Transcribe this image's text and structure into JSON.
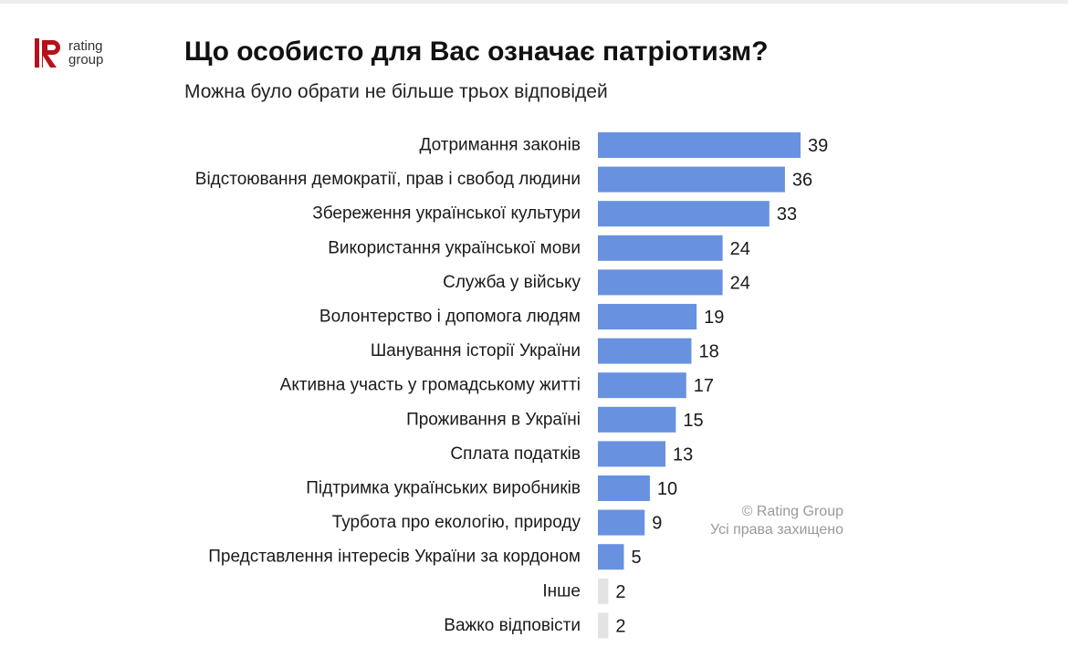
{
  "header": {
    "title": "Що особисто для Вас означає патріотизм?",
    "subtitle": "Можна було обрати не більше трьох відповідей"
  },
  "logo": {
    "line1": "rating",
    "line2": "group",
    "brand_color": "#b5121b"
  },
  "watermark": {
    "line1": "© Rating Group",
    "line2": "Усі права захищено"
  },
  "colors": {
    "bar": "#6891e0",
    "bar_muted": "#e3e3e3",
    "label": "#1a1a1a"
  },
  "chart_data": {
    "type": "bar",
    "orientation": "horizontal",
    "title": "Що особисто для Вас означає патріотизм?",
    "subtitle": "Можна було обрати не більше трьох відповідей",
    "categories": [
      "Дотримання законів",
      "Відстоювання демократії, прав і свобод людини",
      "Збереження української культури",
      "Використання української мови",
      "Служба у війську",
      "Волонтерство і допомога людям",
      "Шанування історії України",
      "Активна участь у громадському житті",
      "Проживання в Україні",
      "Сплата податків",
      "Підтримка українських виробників",
      "Турбота про екологію, природу",
      "Представлення інтересів України за кордоном",
      "Інше",
      "Важко відповісти"
    ],
    "values": [
      39,
      36,
      33,
      24,
      24,
      19,
      18,
      17,
      15,
      13,
      10,
      9,
      5,
      2,
      2
    ],
    "muted": [
      false,
      false,
      false,
      false,
      false,
      false,
      false,
      false,
      false,
      false,
      false,
      false,
      false,
      true,
      true
    ],
    "xlim": [
      0,
      39
    ],
    "grid": false,
    "legend": "none",
    "data_labels": true
  }
}
